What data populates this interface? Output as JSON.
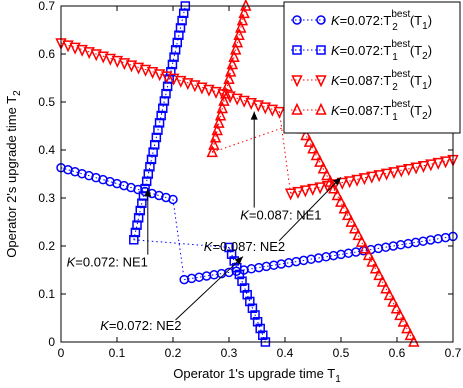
{
  "chart_data": {
    "type": "line",
    "title": "",
    "xlabel": "Operator 1's upgrade time T",
    "xlabel_sub": "1",
    "ylabel": "Operator 2's upgrade time T",
    "ylabel_sub": "2",
    "xlim": [
      0,
      0.7
    ],
    "ylim": [
      0,
      0.7
    ],
    "xticks": [
      "0",
      "0.1",
      "0.2",
      "0.3",
      "0.4",
      "0.5",
      "0.6",
      "0.7"
    ],
    "yticks": [
      "0",
      "0.1",
      "0.2",
      "0.3",
      "0.4",
      "0.5",
      "0.6",
      "0.7"
    ],
    "grid": false,
    "legend_position": "top-right",
    "series": [
      {
        "legend": "K=0.072:T2best(T1)",
        "legend_K": "K",
        "legend_eq": "=0.072:",
        "legend_var": "T",
        "legend_sub": "2",
        "legend_sup": "best",
        "legend_arg": "(T",
        "legend_arg_sub": "1",
        "legend_close": ")",
        "color": "#0000ff",
        "marker": "circle",
        "segments": [
          [
            [
              0.0,
              0.363
            ],
            [
              0.2,
              0.297
            ]
          ],
          [
            [
              0.22,
              0.13
            ],
            [
              0.7,
              0.22
            ]
          ]
        ]
      },
      {
        "legend": "K=0.072:T1best(T2)",
        "legend_K": "K",
        "legend_eq": "=0.072:",
        "legend_var": "T",
        "legend_sub": "1",
        "legend_sup": "best",
        "legend_arg": "(T",
        "legend_arg_sub": "2",
        "legend_close": ")",
        "color": "#0000ff",
        "marker": "square",
        "segments": [
          [
            [
              0.13,
              0.213
            ],
            [
              0.222,
              0.7
            ]
          ],
          [
            [
              0.3,
              0.197
            ],
            [
              0.365,
              0.0
            ]
          ]
        ]
      },
      {
        "legend": "K=0.087:T2best(T1)",
        "legend_K": "K",
        "legend_eq": "=0.087:",
        "legend_var": "T",
        "legend_sub": "2",
        "legend_sup": "best",
        "legend_arg": "(T",
        "legend_arg_sub": "1",
        "legend_close": ")",
        "color": "#ff0000",
        "marker": "triangle-down",
        "segments": [
          [
            [
              0.0,
              0.623
            ],
            [
              0.39,
              0.48
            ]
          ],
          [
            [
              0.41,
              0.31
            ],
            [
              0.7,
              0.38
            ]
          ]
        ]
      },
      {
        "legend": "K=0.087:T1best(T2)",
        "legend_K": "K",
        "legend_eq": "=0.087:",
        "legend_var": "T",
        "legend_sub": "1",
        "legend_sup": "best",
        "legend_arg": "(T",
        "legend_arg_sub": "2",
        "legend_close": ")",
        "color": "#ff0000",
        "marker": "triangle-up",
        "segments": [
          [
            [
              0.27,
              0.395
            ],
            [
              0.33,
              0.7
            ]
          ],
          [
            [
              0.425,
              0.458
            ],
            [
              0.63,
              0.0
            ]
          ]
        ]
      }
    ],
    "jump_lines": [
      {
        "color": "#0000ff",
        "points": [
          [
            0.2,
            0.297
          ],
          [
            0.22,
            0.13
          ]
        ]
      },
      {
        "color": "#0000ff",
        "points": [
          [
            0.13,
            0.213
          ],
          [
            0.3,
            0.197
          ]
        ]
      },
      {
        "color": "#ff0000",
        "points": [
          [
            0.39,
            0.48
          ],
          [
            0.41,
            0.31
          ]
        ]
      },
      {
        "color": "#ff0000",
        "points": [
          [
            0.27,
            0.395
          ],
          [
            0.425,
            0.458
          ]
        ]
      }
    ],
    "annotations": [
      {
        "k": "K",
        "text": "=0.087: NE1",
        "anchor": [
          0.32,
          0.255
        ],
        "arrow_to": [
          0.345,
          0.48
        ]
      },
      {
        "k": "K",
        "text": "=0.087: NE2",
        "anchor": [
          0.255,
          0.19
        ],
        "arrow_to": [
          0.5,
          0.343
        ]
      },
      {
        "k": "K",
        "text": "=0.072: NE1",
        "anchor": [
          0.01,
          0.157
        ],
        "arrow_to": [
          0.155,
          0.32
        ]
      },
      {
        "k": "K",
        "text": "=0.072: NE2",
        "anchor": [
          0.07,
          0.025
        ],
        "arrow_to": [
          0.325,
          0.178
        ]
      }
    ]
  }
}
